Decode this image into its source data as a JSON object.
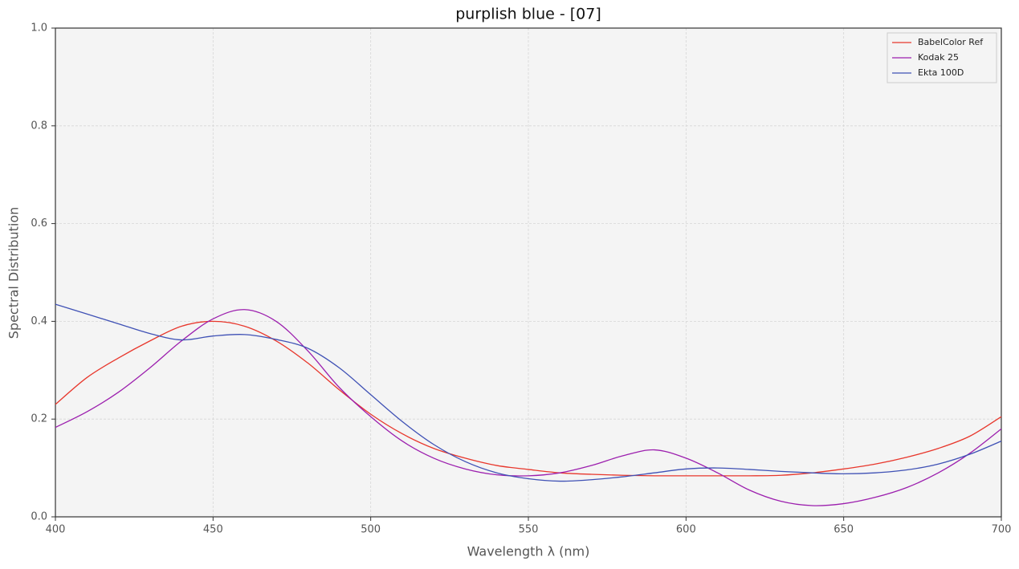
{
  "chart_data": {
    "type": "line",
    "title": "purplish blue - [07]",
    "x_label": "Wavelength λ (nm)",
    "y_label": "Spectral Distribution",
    "x": [
      400,
      410,
      420,
      430,
      440,
      450,
      460,
      470,
      480,
      490,
      500,
      510,
      520,
      530,
      540,
      550,
      560,
      570,
      580,
      590,
      600,
      610,
      620,
      630,
      640,
      650,
      660,
      670,
      680,
      690,
      700
    ],
    "series": [
      {
        "name": "BabelColor Ref",
        "color": "#e8372c",
        "values": [
          0.23,
          0.285,
          0.325,
          0.36,
          0.39,
          0.4,
          0.39,
          0.36,
          0.315,
          0.26,
          0.21,
          0.17,
          0.14,
          0.12,
          0.105,
          0.097,
          0.09,
          0.087,
          0.085,
          0.084,
          0.084,
          0.084,
          0.084,
          0.085,
          0.09,
          0.098,
          0.108,
          0.122,
          0.14,
          0.165,
          0.205
        ]
      },
      {
        "name": "Kodak 25",
        "color": "#9c1fae",
        "values": [
          0.183,
          0.215,
          0.255,
          0.305,
          0.36,
          0.405,
          0.424,
          0.4,
          0.34,
          0.265,
          0.205,
          0.155,
          0.12,
          0.098,
          0.086,
          0.084,
          0.09,
          0.105,
          0.125,
          0.137,
          0.12,
          0.09,
          0.055,
          0.032,
          0.023,
          0.027,
          0.04,
          0.06,
          0.09,
          0.13,
          0.18
        ]
      },
      {
        "name": "Ekta 100D",
        "color": "#3f51b5",
        "values": [
          0.435,
          0.415,
          0.395,
          0.375,
          0.362,
          0.37,
          0.373,
          0.363,
          0.345,
          0.305,
          0.25,
          0.195,
          0.148,
          0.113,
          0.09,
          0.078,
          0.073,
          0.076,
          0.082,
          0.09,
          0.098,
          0.1,
          0.097,
          0.093,
          0.09,
          0.088,
          0.09,
          0.096,
          0.108,
          0.128,
          0.155
        ]
      }
    ],
    "xlim": [
      400,
      700
    ],
    "xticks": [
      400,
      450,
      500,
      550,
      600,
      650,
      700
    ],
    "ylim": [
      0,
      1
    ],
    "yticks": [
      {
        "value": 0,
        "label": "0.0"
      },
      0.2,
      0.4,
      0.6,
      0.8,
      {
        "value": 1,
        "label": "1.0"
      }
    ],
    "grid": true,
    "legend": "upper right"
  }
}
